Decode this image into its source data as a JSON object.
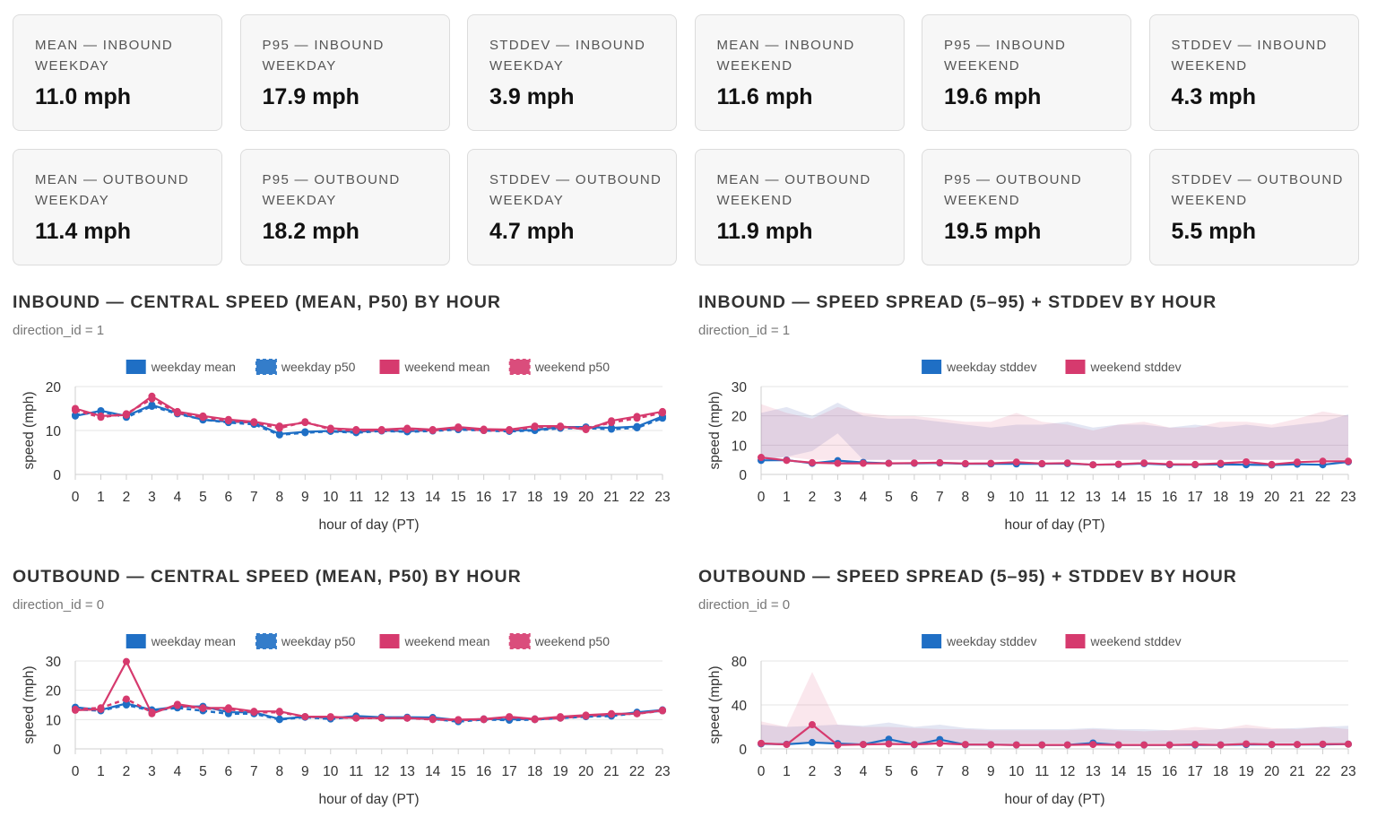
{
  "cards": [
    {
      "label": "MEAN — INBOUND WEEKDAY",
      "value": "11.0 mph"
    },
    {
      "label": "P95 — INBOUND WEEKDAY",
      "value": "17.9 mph"
    },
    {
      "label": "STDDEV — INBOUND WEEKDAY",
      "value": "3.9 mph"
    },
    {
      "label": "MEAN — INBOUND WEEKEND",
      "value": "11.6 mph"
    },
    {
      "label": "P95 — INBOUND WEEKEND",
      "value": "19.6 mph"
    },
    {
      "label": "STDDEV — INBOUND WEEKEND",
      "value": "4.3 mph"
    },
    {
      "label": "MEAN — OUTBOUND WEEKDAY",
      "value": "11.4 mph"
    },
    {
      "label": "P95 — OUTBOUND WEEKDAY",
      "value": "18.2 mph"
    },
    {
      "label": "STDDEV — OUTBOUND WEEKDAY",
      "value": "4.7 mph"
    },
    {
      "label": "MEAN — OUTBOUND WEEKEND",
      "value": "11.9 mph"
    },
    {
      "label": "P95 — OUTBOUND WEEKEND",
      "value": "19.5 mph"
    },
    {
      "label": "STDDEV — OUTBOUND WEEKEND",
      "value": "5.5 mph"
    }
  ],
  "panels": [
    {
      "title": "INBOUND — CENTRAL SPEED (MEAN, P50) BY HOUR",
      "subtitle": "direction_id = 1"
    },
    {
      "title": "INBOUND — SPEED SPREAD (5–95) + STDDEV BY HOUR",
      "subtitle": "direction_id = 1"
    },
    {
      "title": "OUTBOUND — CENTRAL SPEED (MEAN, P50) BY HOUR",
      "subtitle": "direction_id = 0"
    },
    {
      "title": "OUTBOUND — SPEED SPREAD (5–95) + STDDEV BY HOUR",
      "subtitle": "direction_id = 0"
    }
  ],
  "colors": {
    "weekday": "#1f6fc5",
    "weekend": "#d63a6e",
    "grid": "#e6e6e6",
    "axis": "#555555"
  },
  "chart_data": [
    {
      "type": "line",
      "xlabel": "hour of day (PT)",
      "ylabel": "speed (mph)",
      "ylim": [
        0,
        20
      ],
      "yticks": [
        0,
        10,
        20
      ],
      "legend": "top-center",
      "grid": true,
      "x": [
        0,
        1,
        2,
        3,
        4,
        5,
        6,
        7,
        8,
        9,
        10,
        11,
        12,
        13,
        14,
        15,
        16,
        17,
        18,
        19,
        20,
        21,
        22,
        23
      ],
      "series": [
        {
          "name": "weekday mean",
          "color": "#1f6fc5",
          "dashed": false,
          "values": [
            13.3,
            14.5,
            13.3,
            15.8,
            14.0,
            12.4,
            12.0,
            11.8,
            9.2,
            9.7,
            9.9,
            9.7,
            10.0,
            9.8,
            10.1,
            10.3,
            10.2,
            10.0,
            10.1,
            10.8,
            10.8,
            10.6,
            10.9,
            13.2
          ]
        },
        {
          "name": "weekday p50",
          "color": "#1f6fc5",
          "dashed": true,
          "values": [
            13.5,
            14.3,
            13.0,
            15.5,
            13.8,
            12.5,
            11.8,
            11.4,
            9.0,
            9.5,
            9.8,
            9.5,
            9.9,
            9.7,
            9.9,
            10.2,
            10.0,
            9.8,
            10.0,
            10.5,
            10.5,
            10.3,
            10.6,
            12.8
          ]
        },
        {
          "name": "weekend mean",
          "color": "#d63a6e",
          "dashed": false,
          "values": [
            15.0,
            13.3,
            13.5,
            17.8,
            14.3,
            13.3,
            12.5,
            12.0,
            11.0,
            11.8,
            10.5,
            10.2,
            10.2,
            10.5,
            10.2,
            10.8,
            10.3,
            10.2,
            11.0,
            11.0,
            10.2,
            12.2,
            13.2,
            14.3
          ]
        },
        {
          "name": "weekend p50",
          "color": "#d63a6e",
          "dashed": true,
          "values": [
            14.6,
            13.0,
            13.8,
            17.2,
            14.0,
            13.0,
            12.2,
            11.8,
            10.5,
            12.0,
            10.2,
            10.0,
            10.0,
            10.2,
            10.0,
            10.5,
            10.0,
            10.0,
            10.8,
            10.8,
            10.5,
            11.8,
            12.8,
            14.0
          ]
        }
      ]
    },
    {
      "type": "area",
      "xlabel": "hour of day (PT)",
      "ylabel": "speed (mph)",
      "ylim": [
        0,
        30
      ],
      "yticks": [
        0,
        10,
        20,
        30
      ],
      "legend": "top-center",
      "grid": true,
      "x": [
        0,
        1,
        2,
        3,
        4,
        5,
        6,
        7,
        8,
        9,
        10,
        11,
        12,
        13,
        14,
        15,
        16,
        17,
        18,
        19,
        20,
        21,
        22,
        23
      ],
      "bands": [
        {
          "group": "weekday",
          "p5": [
            5,
            6,
            8,
            14,
            5,
            5,
            5,
            5,
            5,
            5,
            5,
            5,
            5,
            5,
            5,
            5,
            5,
            5,
            5,
            5,
            5,
            5,
            5,
            5
          ],
          "p95": [
            21,
            23,
            20,
            24.5,
            20,
            19,
            19,
            18,
            17,
            16,
            17,
            17,
            18,
            16,
            17,
            17,
            16,
            17,
            16,
            17,
            16,
            17,
            18,
            20.5
          ]
        },
        {
          "group": "weekend",
          "p5": [
            5,
            6,
            5,
            5,
            5,
            5,
            5,
            5,
            5,
            5,
            5,
            5,
            5,
            5,
            5,
            5,
            5,
            5,
            5,
            5,
            5,
            5,
            5,
            5
          ],
          "p95": [
            24,
            21,
            19,
            23,
            21,
            20,
            20,
            19,
            18,
            18,
            21,
            18,
            17,
            15,
            17,
            18,
            16,
            16,
            18,
            18,
            17,
            19,
            21.5,
            20
          ]
        }
      ],
      "series": [
        {
          "name": "weekday stddev",
          "color": "#1f6fc5",
          "values": [
            4.8,
            4.9,
            3.8,
            4.7,
            4.1,
            3.8,
            3.8,
            3.9,
            3.6,
            3.6,
            3.6,
            3.6,
            3.7,
            3.3,
            3.4,
            3.7,
            3.3,
            3.3,
            3.4,
            3.3,
            3.2,
            3.5,
            3.3,
            4.3
          ]
        },
        {
          "name": "weekend stddev",
          "color": "#d63a6e",
          "values": [
            5.8,
            4.8,
            4.0,
            3.8,
            3.8,
            3.8,
            3.9,
            4.0,
            3.7,
            3.8,
            4.2,
            3.7,
            3.9,
            3.3,
            3.5,
            3.9,
            3.5,
            3.4,
            3.8,
            4.3,
            3.4,
            4.2,
            4.5,
            4.5
          ]
        }
      ]
    },
    {
      "type": "line",
      "xlabel": "hour of day (PT)",
      "ylabel": "speed (mph)",
      "ylim": [
        0,
        30
      ],
      "yticks": [
        0,
        10,
        20,
        30
      ],
      "legend": "top-center",
      "grid": true,
      "x": [
        0,
        1,
        2,
        3,
        4,
        5,
        6,
        7,
        8,
        9,
        10,
        11,
        12,
        13,
        14,
        15,
        16,
        17,
        18,
        19,
        20,
        21,
        22,
        23
      ],
      "series": [
        {
          "name": "weekday mean",
          "color": "#1f6fc5",
          "dashed": false,
          "values": [
            14.2,
            13.3,
            15.5,
            13.3,
            14.4,
            14.5,
            12.5,
            12.5,
            10.2,
            11.0,
            10.5,
            11.2,
            10.8,
            10.8,
            10.7,
            9.8,
            10.2,
            10.0,
            10.2,
            10.8,
            11.2,
            11.5,
            12.5,
            13.3
          ]
        },
        {
          "name": "weekday p50",
          "color": "#1f6fc5",
          "dashed": true,
          "values": [
            13.5,
            13.0,
            15.0,
            13.0,
            14.0,
            13.0,
            12.0,
            12.0,
            10.0,
            10.8,
            10.2,
            11.0,
            10.5,
            10.5,
            10.2,
            9.3,
            10.0,
            9.8,
            10.0,
            10.5,
            11.0,
            11.2,
            12.2,
            13.0
          ]
        },
        {
          "name": "weekend mean",
          "color": "#d63a6e",
          "dashed": false,
          "values": [
            13.2,
            13.5,
            29.8,
            12.0,
            15.2,
            14.0,
            14.0,
            12.8,
            12.8,
            11.0,
            11.0,
            10.5,
            10.5,
            10.5,
            10.2,
            10.0,
            10.2,
            11.0,
            10.2,
            11.0,
            11.5,
            12.0,
            12.0,
            13.2
          ]
        },
        {
          "name": "weekend p50",
          "color": "#d63a6e",
          "dashed": true,
          "values": [
            13.5,
            14.0,
            17.0,
            12.5,
            14.8,
            13.8,
            13.5,
            12.5,
            12.5,
            11.0,
            10.8,
            10.5,
            10.5,
            10.5,
            10.0,
            9.8,
            10.0,
            10.8,
            10.0,
            10.5,
            11.2,
            11.8,
            12.0,
            13.0
          ]
        }
      ]
    },
    {
      "type": "area",
      "xlabel": "hour of day (PT)",
      "ylabel": "speed (mph)",
      "ylim": [
        0,
        80
      ],
      "yticks": [
        0,
        40,
        80
      ],
      "legend": "top-center",
      "grid": true,
      "x": [
        0,
        1,
        2,
        3,
        4,
        5,
        6,
        7,
        8,
        9,
        10,
        11,
        12,
        13,
        14,
        15,
        16,
        17,
        18,
        19,
        20,
        21,
        22,
        23
      ],
      "bands": [
        {
          "group": "weekday",
          "p5": [
            5,
            5,
            5,
            5,
            5,
            5,
            5,
            5,
            5,
            5,
            5,
            5,
            5,
            5,
            5,
            5,
            5,
            5,
            5,
            5,
            5,
            5,
            5,
            5
          ],
          "p95": [
            22,
            20,
            21,
            22,
            21,
            24,
            20,
            22,
            19,
            18,
            18,
            18,
            18,
            19,
            18,
            18,
            17,
            17,
            18,
            19,
            18,
            19,
            20,
            21
          ]
        },
        {
          "group": "weekend",
          "p5": [
            5,
            5,
            5,
            5,
            5,
            5,
            5,
            5,
            5,
            5,
            5,
            5,
            5,
            5,
            5,
            5,
            5,
            5,
            5,
            5,
            5,
            5,
            5,
            5
          ],
          "p95": [
            25,
            20,
            70,
            22,
            20,
            20,
            19,
            18,
            18,
            17,
            17,
            17,
            17,
            18,
            17,
            16,
            17,
            20,
            18,
            22,
            19,
            18,
            20,
            18
          ]
        }
      ],
      "series": [
        {
          "name": "weekday stddev",
          "color": "#1f6fc5",
          "values": [
            4.6,
            4.2,
            5.8,
            4.8,
            4.0,
            8.8,
            3.8,
            8.5,
            3.8,
            3.8,
            3.6,
            3.6,
            3.6,
            5.3,
            3.6,
            3.6,
            3.6,
            3.6,
            3.6,
            3.9,
            3.9,
            3.9,
            4.0,
            4.3
          ]
        },
        {
          "name": "weekend stddev",
          "color": "#d63a6e",
          "values": [
            5.0,
            4.0,
            22.0,
            3.5,
            4.0,
            4.5,
            4.0,
            5.0,
            4.0,
            3.8,
            3.6,
            3.6,
            3.6,
            4.0,
            3.6,
            3.6,
            3.6,
            4.0,
            3.6,
            4.5,
            4.0,
            4.0,
            4.3,
            4.3
          ]
        }
      ]
    }
  ]
}
